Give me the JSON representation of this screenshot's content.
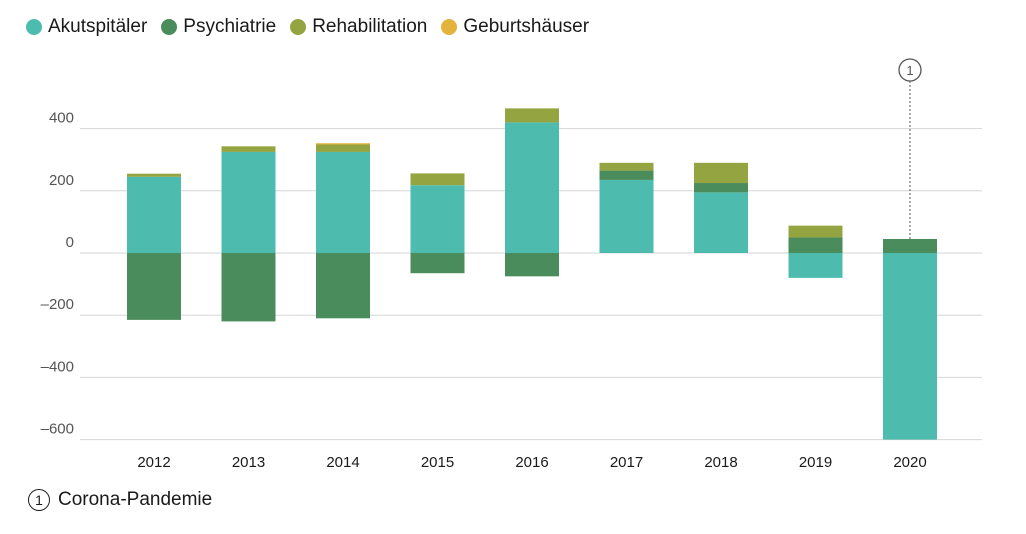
{
  "chart_data": {
    "type": "bar",
    "stacked": true,
    "title": "",
    "xlabel": "",
    "ylabel": "",
    "ylim": [
      -600,
      500
    ],
    "yticks": [
      -600,
      -400,
      -200,
      0,
      200,
      400
    ],
    "ytick_labels": [
      "–600",
      "–400",
      "–200",
      "0",
      "200",
      "400"
    ],
    "categories": [
      "2012",
      "2013",
      "2014",
      "2015",
      "2016",
      "2017",
      "2018",
      "2019",
      "2020"
    ],
    "series": [
      {
        "name": "Akutspitäler",
        "color": "#4dbcae",
        "values": [
          245,
          325,
          325,
          218,
          420,
          235,
          195,
          -80,
          -600
        ]
      },
      {
        "name": "Psychiatrie",
        "color": "#4a8c5c",
        "values": [
          -215,
          -220,
          -210,
          -65,
          -75,
          30,
          30,
          50,
          45
        ]
      },
      {
        "name": "Rehabilitation",
        "color": "#93a441",
        "values": [
          10,
          18,
          24,
          38,
          45,
          25,
          65,
          38,
          0
        ]
      },
      {
        "name": "Geburtshäuser",
        "color": "#e3b33b",
        "values": [
          0,
          0,
          4,
          0,
          0,
          0,
          0,
          0,
          0
        ]
      }
    ],
    "legend_position": "top-left",
    "annotations": [
      {
        "category": "2020",
        "marker": "1",
        "text": "Corona-Pandemie"
      }
    ]
  },
  "footnote": {
    "marker": "1",
    "text": "Corona-Pandemie"
  }
}
